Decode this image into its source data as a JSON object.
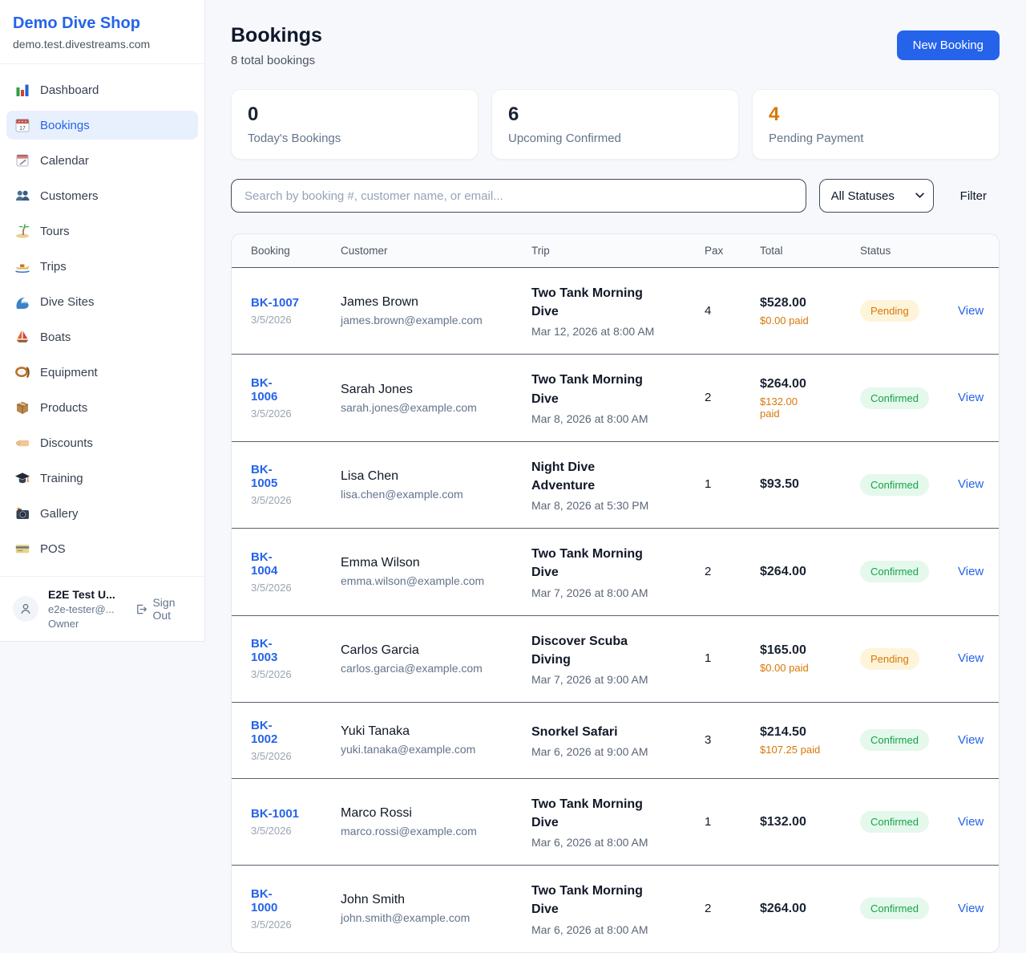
{
  "colors": {
    "accent_blue": "#2563eb",
    "pending_orange": "#d97706",
    "confirmed_green": "#16a34a",
    "pending_badge_bg": "#fdf4da",
    "confirmed_badge_bg": "#e4f8eb"
  },
  "sidebar": {
    "brand": "Demo Dive Shop",
    "domain": "demo.test.divestreams.com",
    "items": [
      {
        "label": "Dashboard",
        "icon": "bar-chart-icon"
      },
      {
        "label": "Bookings",
        "icon": "calendar-17-icon"
      },
      {
        "label": "Calendar",
        "icon": "tear-calendar-icon"
      },
      {
        "label": "Customers",
        "icon": "people-icon"
      },
      {
        "label": "Tours",
        "icon": "palm-island-icon"
      },
      {
        "label": "Trips",
        "icon": "speedboat-icon"
      },
      {
        "label": "Dive Sites",
        "icon": "wave-icon"
      },
      {
        "label": "Boats",
        "icon": "sailboat-icon"
      },
      {
        "label": "Equipment",
        "icon": "dive-mask-icon"
      },
      {
        "label": "Products",
        "icon": "package-icon"
      },
      {
        "label": "Discounts",
        "icon": "tag-icon"
      },
      {
        "label": "Training",
        "icon": "graduation-cap-icon"
      },
      {
        "label": "Gallery",
        "icon": "camera-icon"
      },
      {
        "label": "POS",
        "icon": "credit-card-icon"
      }
    ],
    "active_item": "Bookings",
    "user": {
      "name": "E2E Test U...",
      "email": "e2e-tester@...",
      "role": "Owner",
      "sign_out_label": "Sign Out"
    }
  },
  "header": {
    "title": "Bookings",
    "subtitle": "8 total bookings",
    "new_booking_label": "New Booking"
  },
  "stats": [
    {
      "value": "0",
      "label": "Today's Bookings"
    },
    {
      "value": "6",
      "label": "Upcoming Confirmed"
    },
    {
      "value": "4",
      "label": "Pending Payment"
    }
  ],
  "filters": {
    "search_placeholder": "Search by booking #, customer name, or email...",
    "status_selected": "All Statuses",
    "filter_label": "Filter"
  },
  "table": {
    "columns": [
      "Booking",
      "Customer",
      "Trip",
      "Pax",
      "Total",
      "Status",
      ""
    ],
    "rows": [
      {
        "id": "BK-1007",
        "date": "3/5/2026",
        "customer": "James Brown",
        "email": "james.brown@example.com",
        "trip": "Two Tank Morning Dive",
        "when": "Mar 12, 2026 at 8:00 AM",
        "pax": "4",
        "total": "$528.00",
        "paid": "$0.00 paid",
        "status": "Pending",
        "action": "View"
      },
      {
        "id": "BK-\n1006",
        "date": "3/5/2026",
        "customer": "Sarah Jones",
        "email": "sarah.jones@example.com",
        "trip": "Two Tank Morning Dive",
        "when": "Mar 8, 2026 at 8:00 AM",
        "pax": "2",
        "total": "$264.00",
        "paid": "$132.00\npaid",
        "status": "Confirmed",
        "action": "View"
      },
      {
        "id": "BK-\n1005",
        "date": "3/5/2026",
        "customer": "Lisa Chen",
        "email": "lisa.chen@example.com",
        "trip": "Night Dive Adventure",
        "when": "Mar 8, 2026 at 5:30 PM",
        "pax": "1",
        "total": "$93.50",
        "paid": null,
        "status": "Confirmed",
        "action": "View"
      },
      {
        "id": "BK-\n1004",
        "date": "3/5/2026",
        "customer": "Emma Wilson",
        "email": "emma.wilson@example.com",
        "trip": "Two Tank Morning Dive",
        "when": "Mar 7, 2026 at 8:00 AM",
        "pax": "2",
        "total": "$264.00",
        "paid": null,
        "status": "Confirmed",
        "action": "View"
      },
      {
        "id": "BK-\n1003",
        "date": "3/5/2026",
        "customer": "Carlos Garcia",
        "email": "carlos.garcia@example.com",
        "trip": "Discover Scuba Diving",
        "when": "Mar 7, 2026 at 9:00 AM",
        "pax": "1",
        "total": "$165.00",
        "paid": "$0.00 paid",
        "status": "Pending",
        "action": "View"
      },
      {
        "id": "BK-\n1002",
        "date": "3/5/2026",
        "customer": "Yuki Tanaka",
        "email": "yuki.tanaka@example.com",
        "trip": "Snorkel Safari",
        "when": "Mar 6, 2026 at 9:00 AM",
        "pax": "3",
        "total": "$214.50",
        "paid": "$107.25 paid",
        "status": "Confirmed",
        "action": "View"
      },
      {
        "id": "BK-1001",
        "date": "3/5/2026",
        "customer": "Marco Rossi",
        "email": "marco.rossi@example.com",
        "trip": "Two Tank Morning Dive",
        "when": "Mar 6, 2026 at 8:00 AM",
        "pax": "1",
        "total": "$132.00",
        "paid": null,
        "status": "Confirmed",
        "action": "View"
      },
      {
        "id": "BK-\n1000",
        "date": "3/5/2026",
        "customer": "John Smith",
        "email": "john.smith@example.com",
        "trip": "Two Tank Morning Dive",
        "when": "Mar 6, 2026 at 8:00 AM",
        "pax": "2",
        "total": "$264.00",
        "paid": null,
        "status": "Confirmed",
        "action": "View"
      }
    ]
  }
}
